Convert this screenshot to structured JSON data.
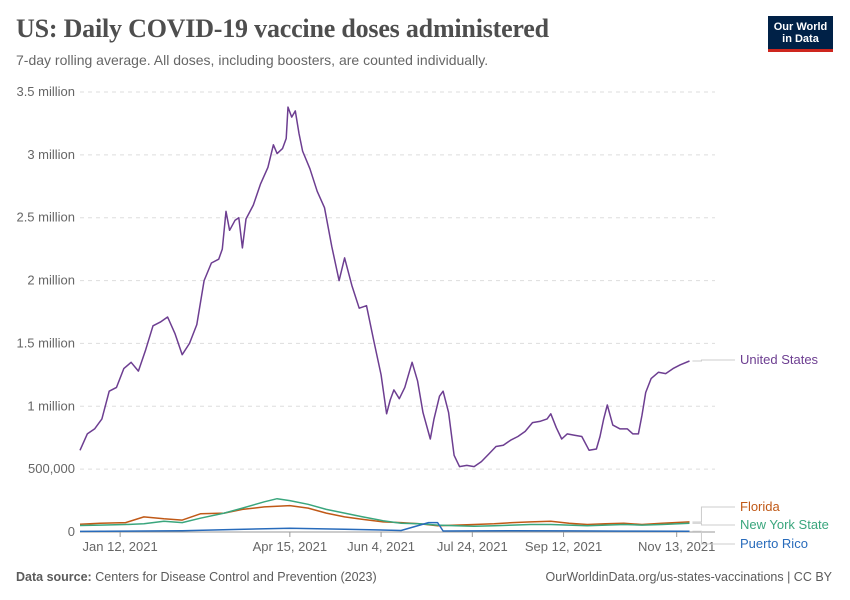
{
  "header": {
    "title": "US: Daily COVID-19 vaccine doses administered",
    "subtitle": "7-day rolling average. All doses, including boosters, are counted individually."
  },
  "logo": {
    "line1": "Our World",
    "line2": "in Data",
    "bg_color": "#002147",
    "accent_color": "#ce261e"
  },
  "footer": {
    "source_label": "Data source:",
    "source_text": "Centers for Disease Control and Prevention (2023)",
    "url": "OurWorldinData.org/us-states-vaccinations | CC BY"
  },
  "chart_data": {
    "type": "line",
    "title": "US: Daily COVID-19 vaccine doses administered",
    "subtitle": "7-day rolling average. All doses, including boosters, are counted individually.",
    "xlim": [
      "2020-12-21",
      "2021-12-04"
    ],
    "ylim": [
      0,
      3500000
    ],
    "grid": "horizontal dashed",
    "legend": "right, end-of-line labels",
    "y_ticks": [
      {
        "value": 0,
        "label": "0"
      },
      {
        "value": 500000,
        "label": "500,000"
      },
      {
        "value": 1000000,
        "label": "1 million"
      },
      {
        "value": 1500000,
        "label": "1.5 million"
      },
      {
        "value": 2000000,
        "label": "2 million"
      },
      {
        "value": 2500000,
        "label": "2.5 million"
      },
      {
        "value": 3000000,
        "label": "3 million"
      },
      {
        "value": 3500000,
        "label": "3.5 million"
      }
    ],
    "x_ticks": [
      {
        "date": "2021-01-12",
        "label": "Jan 12, 2021"
      },
      {
        "date": "2021-04-15",
        "label": "Apr 15, 2021"
      },
      {
        "date": "2021-06-04",
        "label": "Jun 4, 2021"
      },
      {
        "date": "2021-07-24",
        "label": "Jul 24, 2021"
      },
      {
        "date": "2021-09-12",
        "label": "Sep 12, 2021"
      },
      {
        "date": "2021-11-13",
        "label": "Nov 13, 2021"
      }
    ],
    "series": [
      {
        "name": "United States",
        "color": "#6d3e91",
        "points": [
          [
            "2020-12-21",
            650000
          ],
          [
            "2020-12-25",
            780000
          ],
          [
            "2020-12-29",
            820000
          ],
          [
            "2021-01-02",
            900000
          ],
          [
            "2021-01-06",
            1120000
          ],
          [
            "2021-01-10",
            1150000
          ],
          [
            "2021-01-14",
            1300000
          ],
          [
            "2021-01-18",
            1350000
          ],
          [
            "2021-01-22",
            1280000
          ],
          [
            "2021-01-26",
            1450000
          ],
          [
            "2021-01-30",
            1640000
          ],
          [
            "2021-02-03",
            1670000
          ],
          [
            "2021-02-07",
            1710000
          ],
          [
            "2021-02-11",
            1580000
          ],
          [
            "2021-02-15",
            1410000
          ],
          [
            "2021-02-19",
            1500000
          ],
          [
            "2021-02-23",
            1650000
          ],
          [
            "2021-02-27",
            2000000
          ],
          [
            "2021-03-03",
            2140000
          ],
          [
            "2021-03-07",
            2170000
          ],
          [
            "2021-03-09",
            2250000
          ],
          [
            "2021-03-11",
            2550000
          ],
          [
            "2021-03-13",
            2400000
          ],
          [
            "2021-03-16",
            2480000
          ],
          [
            "2021-03-18",
            2500000
          ],
          [
            "2021-03-20",
            2260000
          ],
          [
            "2021-03-22",
            2490000
          ],
          [
            "2021-03-26",
            2600000
          ],
          [
            "2021-03-30",
            2770000
          ],
          [
            "2021-04-03",
            2900000
          ],
          [
            "2021-04-06",
            3080000
          ],
          [
            "2021-04-08",
            3010000
          ],
          [
            "2021-04-11",
            3050000
          ],
          [
            "2021-04-13",
            3130000
          ],
          [
            "2021-04-14",
            3380000
          ],
          [
            "2021-04-16",
            3300000
          ],
          [
            "2021-04-18",
            3350000
          ],
          [
            "2021-04-20",
            3170000
          ],
          [
            "2021-04-22",
            3030000
          ],
          [
            "2021-04-26",
            2890000
          ],
          [
            "2021-04-30",
            2710000
          ],
          [
            "2021-05-04",
            2580000
          ],
          [
            "2021-05-08",
            2270000
          ],
          [
            "2021-05-12",
            2000000
          ],
          [
            "2021-05-15",
            2180000
          ],
          [
            "2021-05-19",
            1960000
          ],
          [
            "2021-05-23",
            1780000
          ],
          [
            "2021-05-27",
            1800000
          ],
          [
            "2021-05-31",
            1520000
          ],
          [
            "2021-06-04",
            1250000
          ],
          [
            "2021-06-07",
            940000
          ],
          [
            "2021-06-09",
            1050000
          ],
          [
            "2021-06-11",
            1130000
          ],
          [
            "2021-06-14",
            1060000
          ],
          [
            "2021-06-17",
            1150000
          ],
          [
            "2021-06-21",
            1350000
          ],
          [
            "2021-06-24",
            1200000
          ],
          [
            "2021-06-27",
            950000
          ],
          [
            "2021-07-01",
            740000
          ],
          [
            "2021-07-03",
            900000
          ],
          [
            "2021-07-06",
            1080000
          ],
          [
            "2021-07-08",
            1120000
          ],
          [
            "2021-07-11",
            950000
          ],
          [
            "2021-07-14",
            610000
          ],
          [
            "2021-07-17",
            520000
          ],
          [
            "2021-07-21",
            530000
          ],
          [
            "2021-07-25",
            520000
          ],
          [
            "2021-07-29",
            560000
          ],
          [
            "2021-08-02",
            620000
          ],
          [
            "2021-08-06",
            680000
          ],
          [
            "2021-08-10",
            690000
          ],
          [
            "2021-08-14",
            730000
          ],
          [
            "2021-08-18",
            760000
          ],
          [
            "2021-08-22",
            800000
          ],
          [
            "2021-08-26",
            870000
          ],
          [
            "2021-08-30",
            880000
          ],
          [
            "2021-09-03",
            900000
          ],
          [
            "2021-09-05",
            940000
          ],
          [
            "2021-09-08",
            830000
          ],
          [
            "2021-09-11",
            740000
          ],
          [
            "2021-09-14",
            780000
          ],
          [
            "2021-09-18",
            770000
          ],
          [
            "2021-09-22",
            760000
          ],
          [
            "2021-09-26",
            650000
          ],
          [
            "2021-09-30",
            660000
          ],
          [
            "2021-10-02",
            760000
          ],
          [
            "2021-10-04",
            900000
          ],
          [
            "2021-10-06",
            1010000
          ],
          [
            "2021-10-09",
            850000
          ],
          [
            "2021-10-13",
            820000
          ],
          [
            "2021-10-17",
            820000
          ],
          [
            "2021-10-20",
            780000
          ],
          [
            "2021-10-23",
            780000
          ],
          [
            "2021-10-25",
            930000
          ],
          [
            "2021-10-27",
            1110000
          ],
          [
            "2021-10-30",
            1220000
          ],
          [
            "2021-11-03",
            1270000
          ],
          [
            "2021-11-07",
            1260000
          ],
          [
            "2021-11-11",
            1300000
          ],
          [
            "2021-11-15",
            1330000
          ],
          [
            "2021-11-20",
            1360000
          ]
        ]
      },
      {
        "name": "Florida",
        "color": "#c05917",
        "points": [
          [
            "2020-12-21",
            62000
          ],
          [
            "2021-01-01",
            70000
          ],
          [
            "2021-01-15",
            75000
          ],
          [
            "2021-01-25",
            120000
          ],
          [
            "2021-02-05",
            105000
          ],
          [
            "2021-02-15",
            95000
          ],
          [
            "2021-02-25",
            145000
          ],
          [
            "2021-03-10",
            150000
          ],
          [
            "2021-03-20",
            180000
          ],
          [
            "2021-04-01",
            200000
          ],
          [
            "2021-04-15",
            210000
          ],
          [
            "2021-04-25",
            190000
          ],
          [
            "2021-05-05",
            150000
          ],
          [
            "2021-05-15",
            120000
          ],
          [
            "2021-05-25",
            100000
          ],
          [
            "2021-06-05",
            80000
          ],
          [
            "2021-06-15",
            75000
          ],
          [
            "2021-06-25",
            65000
          ],
          [
            "2021-07-05",
            50000
          ],
          [
            "2021-07-15",
            55000
          ],
          [
            "2021-07-25",
            60000
          ],
          [
            "2021-08-05",
            65000
          ],
          [
            "2021-08-15",
            75000
          ],
          [
            "2021-08-25",
            80000
          ],
          [
            "2021-09-05",
            85000
          ],
          [
            "2021-09-15",
            70000
          ],
          [
            "2021-09-25",
            60000
          ],
          [
            "2021-10-05",
            65000
          ],
          [
            "2021-10-15",
            70000
          ],
          [
            "2021-10-25",
            60000
          ],
          [
            "2021-11-05",
            70000
          ],
          [
            "2021-11-20",
            80000
          ]
        ]
      },
      {
        "name": "New York State",
        "color": "#3aa67d",
        "points": [
          [
            "2020-12-21",
            52000
          ],
          [
            "2021-01-01",
            55000
          ],
          [
            "2021-01-15",
            60000
          ],
          [
            "2021-01-25",
            65000
          ],
          [
            "2021-02-05",
            85000
          ],
          [
            "2021-02-15",
            75000
          ],
          [
            "2021-02-25",
            110000
          ],
          [
            "2021-03-10",
            150000
          ],
          [
            "2021-03-20",
            190000
          ],
          [
            "2021-04-01",
            240000
          ],
          [
            "2021-04-08",
            265000
          ],
          [
            "2021-04-15",
            250000
          ],
          [
            "2021-04-25",
            220000
          ],
          [
            "2021-05-05",
            180000
          ],
          [
            "2021-05-15",
            150000
          ],
          [
            "2021-05-25",
            120000
          ],
          [
            "2021-06-05",
            90000
          ],
          [
            "2021-06-15",
            70000
          ],
          [
            "2021-06-25",
            65000
          ],
          [
            "2021-07-05",
            55000
          ],
          [
            "2021-07-15",
            50000
          ],
          [
            "2021-07-25",
            45000
          ],
          [
            "2021-08-05",
            50000
          ],
          [
            "2021-08-15",
            55000
          ],
          [
            "2021-08-25",
            60000
          ],
          [
            "2021-09-05",
            60000
          ],
          [
            "2021-09-15",
            55000
          ],
          [
            "2021-09-25",
            50000
          ],
          [
            "2021-10-05",
            55000
          ],
          [
            "2021-10-15",
            60000
          ],
          [
            "2021-10-25",
            55000
          ],
          [
            "2021-11-05",
            60000
          ],
          [
            "2021-11-20",
            70000
          ]
        ]
      },
      {
        "name": "Puerto Rico",
        "color": "#286bbb",
        "points": [
          [
            "2020-12-21",
            5000
          ],
          [
            "2021-01-15",
            7000
          ],
          [
            "2021-02-15",
            10000
          ],
          [
            "2021-03-15",
            20000
          ],
          [
            "2021-04-15",
            30000
          ],
          [
            "2021-05-15",
            22000
          ],
          [
            "2021-06-15",
            12000
          ],
          [
            "2021-06-30",
            75000
          ],
          [
            "2021-07-05",
            75000
          ],
          [
            "2021-07-08",
            8000
          ],
          [
            "2021-08-15",
            10000
          ],
          [
            "2021-09-15",
            9000
          ],
          [
            "2021-10-15",
            7000
          ],
          [
            "2021-11-20",
            6000
          ]
        ]
      }
    ]
  }
}
